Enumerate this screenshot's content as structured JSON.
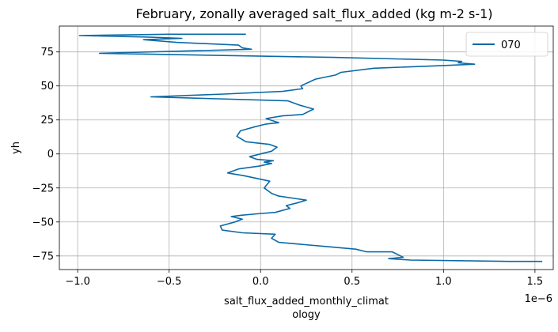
{
  "chart_data": {
    "type": "line",
    "title": "February, zonally averaged salt_flux_added (kg m-2 s-1)",
    "xlabel_line1": "salt_flux_added_monthly_climat",
    "xlabel_line2": "ology",
    "ylabel": "yh",
    "x_offset_text": "1e−6",
    "x_scale": 1e-06,
    "xlim": [
      -1.1e-06,
      1.6e-06
    ],
    "ylim": [
      -85,
      94
    ],
    "xticks": [
      -1.0,
      -0.5,
      0.0,
      0.5,
      1.0,
      1.5
    ],
    "xtick_labels": [
      "−1.0",
      "−0.5",
      "0.0",
      "0.5",
      "1.0",
      "1.5"
    ],
    "yticks": [
      -75,
      -50,
      -25,
      0,
      25,
      50,
      75
    ],
    "ytick_labels": [
      "−75",
      "−50",
      "−25",
      "0",
      "25",
      "50",
      "75"
    ],
    "grid": true,
    "legend_position": "top-right",
    "series": [
      {
        "name": "070",
        "color": "#0a6aa6",
        "x": [
          1.54e-06,
          1.36e-06,
          8.2e-07,
          7e-07,
          7.8e-07,
          7.2e-07,
          5.8e-07,
          5.2e-07,
          3.5e-07,
          1e-07,
          6e-08,
          8e-08,
          -1e-07,
          -2.1e-07,
          -2.2e-07,
          -1.4e-07,
          -1e-07,
          -1.6e-07,
          -1e-07,
          -2e-08,
          8e-08,
          1.6e-07,
          1.4e-07,
          2e-07,
          2.5e-07,
          2e-07,
          1e-07,
          6e-08,
          2e-08,
          5e-08,
          -9e-08,
          -1.8e-07,
          -1.2e-07,
          -1e-08,
          6e-08,
          2e-08,
          7e-08,
          -2e-08,
          -6e-08,
          0.0,
          6e-08,
          9e-08,
          5e-08,
          -8e-08,
          -1.3e-07,
          -1.1e-07,
          -3e-08,
          3e-08,
          1e-07,
          3e-08,
          1.2e-07,
          2.3e-07,
          2.6e-07,
          2.9e-07,
          2.1e-07,
          1.5e-07,
          -6e-07,
          -2e-07,
          1.2e-07,
          2.3e-07,
          2.2e-07,
          3e-07,
          4.1e-07,
          4.4e-07,
          6.2e-07,
          1e-06,
          1.17e-06,
          1.08e-06,
          1.1e-06,
          1e-06,
          4e-07,
          -8.8e-07,
          -5e-08,
          -1e-07,
          -1.2e-07,
          -4.6e-07,
          -6.4e-07,
          -4.3e-07,
          -6.3e-07,
          -9.9e-07,
          -5e-07,
          -8e-08
        ],
        "y": [
          -79,
          -79,
          -78,
          -77,
          -76,
          -72,
          -72,
          -70,
          -68,
          -65,
          -62,
          -59,
          -58,
          -56,
          -53,
          -50,
          -48,
          -46,
          -45,
          -44,
          -43,
          -40,
          -38,
          -36,
          -34,
          -33,
          -31,
          -29,
          -25,
          -20,
          -16,
          -14,
          -11,
          -9,
          -7,
          -6,
          -5,
          -4,
          -2,
          0,
          2,
          5,
          7,
          9,
          13,
          17,
          20,
          22,
          23,
          26,
          28,
          29,
          31,
          33,
          36,
          39,
          42,
          44,
          46,
          48,
          50,
          55,
          58,
          60,
          63,
          65,
          66,
          67,
          68,
          69,
          71,
          74,
          77,
          78,
          80,
          82,
          84,
          85,
          86,
          87,
          88,
          88
        ]
      }
    ]
  }
}
